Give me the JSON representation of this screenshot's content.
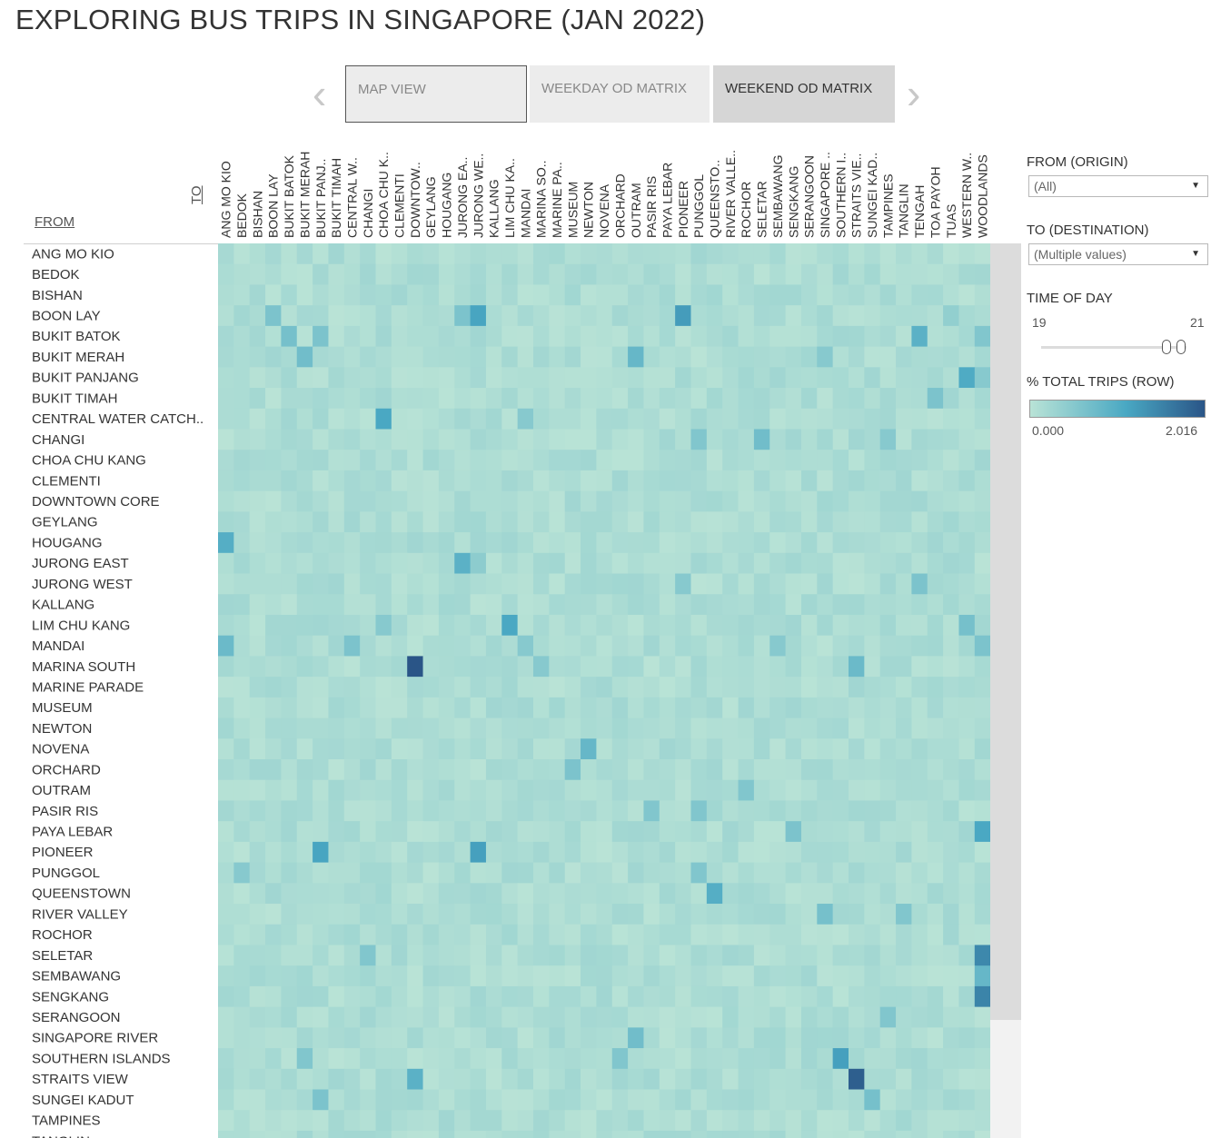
{
  "page_title": "EXPLORING BUS TRIPS IN SINGAPORE (JAN 2022)",
  "tabs": [
    {
      "label": "MAP VIEW"
    },
    {
      "label": "WEEKDAY OD MATRIX"
    },
    {
      "label": "WEEKEND OD MATRIX"
    }
  ],
  "filters": {
    "from_label": "FROM (ORIGIN)",
    "from_value": "(All)",
    "to_label": "TO (DESTINATION)",
    "to_value": "(Multiple values)",
    "time_label": "TIME OF DAY",
    "time_start": "19",
    "time_end": "21",
    "time_range": [
      19,
      21
    ],
    "legend_label": "% TOTAL TRIPS (ROW)",
    "legend_min": "0.000",
    "legend_max": "2.016"
  },
  "colors": {
    "low": "#b9e3d6",
    "mid": "#49a8c3",
    "high": "#2a5587"
  },
  "chart_data": {
    "type": "heatmap",
    "xlabel": "TO",
    "ylabel": "FROM",
    "color_range": [
      0,
      2.016
    ],
    "columns": [
      "ANG MO KIO",
      "BEDOK",
      "BISHAN",
      "BOON LAY",
      "BUKIT BATOK",
      "BUKIT MERAH",
      "BUKIT PANJ..",
      "BUKIT TIMAH",
      "CENTRAL W..",
      "CHANGI",
      "CHOA CHU K..",
      "CLEMENTI",
      "DOWNTOW..",
      "GEYLANG",
      "HOUGANG",
      "JURONG EA..",
      "JURONG WE..",
      "KALLANG",
      "LIM CHU KA..",
      "MANDAI",
      "MARINA SO..",
      "MARINE PA..",
      "MUSEUM",
      "NEWTON",
      "NOVENA",
      "ORCHARD",
      "OUTRAM",
      "PASIR RIS",
      "PAYA LEBAR",
      "PIONEER",
      "PUNGGOL",
      "QUEENSTO..",
      "RIVER VALLE..",
      "ROCHOR",
      "SELETAR",
      "SEMBAWANG",
      "SENGKANG",
      "SERANGOON",
      "SINGAPORE ..",
      "SOUTHERN I..",
      "STRAITS VIE..",
      "SUNGEI KAD..",
      "TAMPINES",
      "TANGLIN",
      "TENGAH",
      "TOA PAYOH",
      "TUAS",
      "WESTERN W..",
      "WOODLANDS"
    ],
    "rows": [
      "ANG MO KIO",
      "BEDOK",
      "BISHAN",
      "BOON LAY",
      "BUKIT BATOK",
      "BUKIT MERAH",
      "BUKIT PANJANG",
      "BUKIT TIMAH",
      "CENTRAL WATER CATCH..",
      "CHANGI",
      "CHOA CHU KANG",
      "CLEMENTI",
      "DOWNTOWN CORE",
      "GEYLANG",
      "HOUGANG",
      "JURONG EAST",
      "JURONG WEST",
      "KALLANG",
      "LIM CHU KANG",
      "MANDAI",
      "MARINA SOUTH",
      "MARINE PARADE",
      "MUSEUM",
      "NEWTON",
      "NOVENA",
      "ORCHARD",
      "OUTRAM",
      "PASIR RIS",
      "PAYA LEBAR",
      "PIONEER",
      "PUNGGOL",
      "QUEENSTOWN",
      "RIVER VALLEY",
      "ROCHOR",
      "SELETAR",
      "SEMBAWANG",
      "SENGKANG",
      "SERANGOON",
      "SINGAPORE RIVER",
      "SOUTHERN ISLANDS",
      "STRAITS VIEW",
      "SUNGEI KADUT",
      "TAMPINES",
      "TANGLIN"
    ],
    "highlights": [
      {
        "row": "BOON LAY",
        "col": "BOON LAY",
        "value": 0.55
      },
      {
        "row": "BOON LAY",
        "col": "JURONG EA..",
        "value": 0.55
      },
      {
        "row": "BOON LAY",
        "col": "JURONG WE..",
        "value": 1.05
      },
      {
        "row": "BOON LAY",
        "col": "PIONEER",
        "value": 1.15
      },
      {
        "row": "BOON LAY",
        "col": "TUAS",
        "value": 0.35
      },
      {
        "row": "BUKIT BATOK",
        "col": "BUKIT BATOK",
        "value": 0.6
      },
      {
        "row": "BUKIT BATOK",
        "col": "BUKIT PANJ..",
        "value": 0.55
      },
      {
        "row": "BUKIT BATOK",
        "col": "TENGAH",
        "value": 0.85
      },
      {
        "row": "BUKIT BATOK",
        "col": "WOODLANDS",
        "value": 0.5
      },
      {
        "row": "BUKIT MERAH",
        "col": "BUKIT MERAH",
        "value": 0.65
      },
      {
        "row": "BUKIT MERAH",
        "col": "OUTRAM",
        "value": 0.75
      },
      {
        "row": "BUKIT MERAH",
        "col": "SINGAPORE ..",
        "value": 0.45
      },
      {
        "row": "BUKIT PANJANG",
        "col": "WESTERN W..",
        "value": 0.95
      },
      {
        "row": "BUKIT PANJANG",
        "col": "WOODLANDS",
        "value": 0.45
      },
      {
        "row": "BUKIT TIMAH",
        "col": "TOA PAYOH",
        "value": 0.55
      },
      {
        "row": "CENTRAL WATER CATCH..",
        "col": "CHOA CHU K..",
        "value": 1.0
      },
      {
        "row": "CENTRAL WATER CATCH..",
        "col": "MANDAI",
        "value": 0.45
      },
      {
        "row": "CHANGI",
        "col": "PUNGGOL",
        "value": 0.5
      },
      {
        "row": "CHANGI",
        "col": "SELETAR",
        "value": 0.65
      },
      {
        "row": "CHANGI",
        "col": "TAMPINES",
        "value": 0.45
      },
      {
        "row": "HOUGANG",
        "col": "ANG MO KIO",
        "value": 0.9
      },
      {
        "row": "JURONG EAST",
        "col": "JURONG EA..",
        "value": 0.85
      },
      {
        "row": "JURONG EAST",
        "col": "JURONG WE..",
        "value": 0.4
      },
      {
        "row": "JURONG WEST",
        "col": "TENGAH",
        "value": 0.55
      },
      {
        "row": "JURONG WEST",
        "col": "PIONEER",
        "value": 0.45
      },
      {
        "row": "LIM CHU KANG",
        "col": "LIM CHU KA..",
        "value": 1.0
      },
      {
        "row": "LIM CHU KANG",
        "col": "WESTERN W..",
        "value": 0.6
      },
      {
        "row": "LIM CHU KANG",
        "col": "CHOA CHU K..",
        "value": 0.45
      },
      {
        "row": "MANDAI",
        "col": "ANG MO KIO",
        "value": 0.7
      },
      {
        "row": "MANDAI",
        "col": "CENTRAL W..",
        "value": 0.55
      },
      {
        "row": "MANDAI",
        "col": "MANDAI",
        "value": 0.45
      },
      {
        "row": "MANDAI",
        "col": "SEMBAWANG",
        "value": 0.45
      },
      {
        "row": "MANDAI",
        "col": "WOODLANDS",
        "value": 0.55
      },
      {
        "row": "MARINA SOUTH",
        "col": "DOWNTOW..",
        "value": 2.016
      },
      {
        "row": "MARINA SOUTH",
        "col": "STRAITS VIE..",
        "value": 0.7
      },
      {
        "row": "MARINA SOUTH",
        "col": "MARINA SO..",
        "value": 0.45
      },
      {
        "row": "NOVENA",
        "col": "NEWTON",
        "value": 0.75
      },
      {
        "row": "ORCHARD",
        "col": "MUSEUM",
        "value": 0.55
      },
      {
        "row": "OUTRAM",
        "col": "ROCHOR",
        "value": 0.5
      },
      {
        "row": "PASIR RIS",
        "col": "PASIR RIS",
        "value": 0.5
      },
      {
        "row": "PASIR RIS",
        "col": "PUNGGOL",
        "value": 0.5
      },
      {
        "row": "PAYA LEBAR",
        "col": "WOODLANDS",
        "value": 1.0
      },
      {
        "row": "PAYA LEBAR",
        "col": "SENGKANG",
        "value": 0.55
      },
      {
        "row": "PIONEER",
        "col": "BUKIT PANJ..",
        "value": 1.05
      },
      {
        "row": "PIONEER",
        "col": "JURONG WE..",
        "value": 1.1
      },
      {
        "row": "PUNGGOL",
        "col": "PUNGGOL",
        "value": 0.5
      },
      {
        "row": "PUNGGOL",
        "col": "BEDOK",
        "value": 0.45
      },
      {
        "row": "QUEENSTOWN",
        "col": "QUEENSTO..",
        "value": 0.9
      },
      {
        "row": "RIVER VALLEY",
        "col": "SINGAPORE ..",
        "value": 0.6
      },
      {
        "row": "RIVER VALLEY",
        "col": "TANGLIN",
        "value": 0.5
      },
      {
        "row": "SELETAR",
        "col": "WOODLANDS",
        "value": 1.4
      },
      {
        "row": "SELETAR",
        "col": "CHANGI",
        "value": 0.5
      },
      {
        "row": "SEMBAWANG",
        "col": "WOODLANDS",
        "value": 0.75
      },
      {
        "row": "SENGKANG",
        "col": "WOODLANDS",
        "value": 1.45
      },
      {
        "row": "SERANGOON",
        "col": "TAMPINES",
        "value": 0.5
      },
      {
        "row": "SINGAPORE RIVER",
        "col": "OUTRAM",
        "value": 0.65
      },
      {
        "row": "SOUTHERN ISLANDS",
        "col": "SOUTHERN I..",
        "value": 1.1
      },
      {
        "row": "SOUTHERN ISLANDS",
        "col": "ORCHARD",
        "value": 0.5
      },
      {
        "row": "SOUTHERN ISLANDS",
        "col": "BUKIT MERAH",
        "value": 0.5
      },
      {
        "row": "STRAITS VIEW",
        "col": "STRAITS VIE..",
        "value": 1.9
      },
      {
        "row": "STRAITS VIEW",
        "col": "DOWNTOW..",
        "value": 0.85
      },
      {
        "row": "SUNGEI KADUT",
        "col": "SUNGEI KAD..",
        "value": 0.6
      },
      {
        "row": "SUNGEI KADUT",
        "col": "BUKIT PANJ..",
        "value": 0.55
      }
    ]
  }
}
